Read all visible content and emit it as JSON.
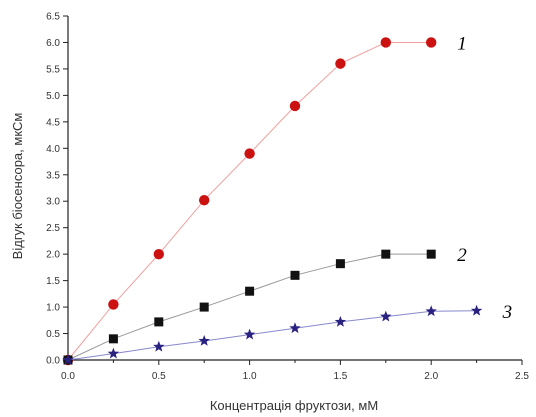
{
  "chart_data": {
    "type": "line",
    "title": "",
    "xlabel": "Концентрація фруктози, мМ",
    "ylabel": "Відгук біосенсора, мкСм",
    "xlim": [
      0.0,
      2.5
    ],
    "ylim": [
      0.0,
      6.5
    ],
    "x_ticks": [
      "0.0",
      "0.5",
      "1.0",
      "1.5",
      "2.0",
      "2.5"
    ],
    "y_ticks": [
      "0.0",
      "0.5",
      "1.0",
      "1.5",
      "2.0",
      "2.5",
      "3.0",
      "3.5",
      "4.0",
      "4.5",
      "5.0",
      "5.5",
      "6.0",
      "6.5"
    ],
    "grid": false,
    "legend": "none",
    "series": [
      {
        "label": "1",
        "marker": "circle",
        "color": "#cc1111",
        "line_color": "#f2a0a0",
        "x": [
          0.0,
          0.25,
          0.5,
          0.75,
          1.0,
          1.25,
          1.5,
          1.75,
          2.0
        ],
        "y": [
          0.0,
          1.05,
          2.0,
          3.02,
          3.9,
          4.8,
          5.6,
          6.0,
          6.0
        ]
      },
      {
        "label": "2",
        "marker": "square",
        "color": "#111111",
        "line_color": "#999999",
        "x": [
          0.0,
          0.25,
          0.5,
          0.75,
          1.0,
          1.25,
          1.5,
          1.75,
          2.0
        ],
        "y": [
          0.0,
          0.4,
          0.72,
          1.0,
          1.3,
          1.6,
          1.82,
          2.0,
          2.0
        ]
      },
      {
        "label": "3",
        "marker": "star",
        "color": "#2a2280",
        "line_color": "#8888cc",
        "x": [
          0.0,
          0.25,
          0.5,
          0.75,
          1.0,
          1.25,
          1.5,
          1.75,
          2.0,
          2.25
        ],
        "y": [
          0.0,
          0.12,
          0.25,
          0.36,
          0.48,
          0.6,
          0.72,
          0.82,
          0.92,
          0.93
        ]
      }
    ]
  }
}
